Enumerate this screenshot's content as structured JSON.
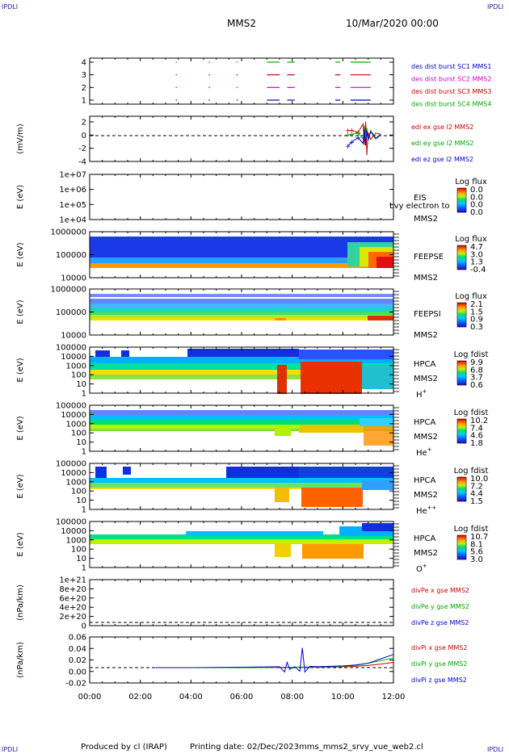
{
  "corners": {
    "tl": "IPDLI",
    "tr": "IPDLI",
    "bl": "IPDLI",
    "br": "IPDLI"
  },
  "header": {
    "spacecraft": "MMS2",
    "datetime": "10/Mar/2020 00:00"
  },
  "footer": {
    "produced": "Produced by cl (IRAP)",
    "printing": "Printing date: 02/Dec/2023",
    "file": "mms_mms2_srvy_vue_web2.cl"
  },
  "chart_data": {
    "type": "multi-panel time series and spectrograms",
    "x_ticks": [
      "00:00",
      "02:00",
      "04:00",
      "06:00",
      "08:00",
      "10:00",
      "12:00"
    ],
    "x_range_hours": [
      0,
      12
    ],
    "panels": [
      {
        "id": "burst",
        "type": "scatter",
        "ylabel": "",
        "yticks": [
          "4",
          "3",
          "2",
          "1"
        ],
        "legend": [
          {
            "text": "des dist burst SC1 MMS1",
            "color": "#0000cc"
          },
          {
            "text": "des dist burst SC2 MMS2",
            "color": "#cc00cc"
          },
          {
            "text": "des dist burst SC3 MMS3",
            "color": "#cc0000"
          },
          {
            "text": "des dist burst SC4 MMS4",
            "color": "#00aa00"
          }
        ],
        "series": [
          {
            "level": 4,
            "color": "#00aa00",
            "segments_hours": [
              [
                3.4,
                3.45
              ],
              [
                4.7,
                4.75
              ],
              [
                5.8,
                5.85
              ],
              [
                7.0,
                7.5
              ],
              [
                7.8,
                8.1
              ],
              [
                9.7,
                9.9
              ],
              [
                10.3,
                11.1
              ]
            ]
          },
          {
            "level": 3,
            "color": "#cc0000",
            "segments_hours": [
              [
                3.4,
                3.45
              ],
              [
                4.7,
                4.75
              ],
              [
                5.8,
                5.85
              ],
              [
                7.0,
                7.5
              ],
              [
                7.8,
                8.1
              ],
              [
                9.7,
                9.9
              ],
              [
                10.3,
                11.1
              ]
            ]
          },
          {
            "level": 2,
            "color": "#cc00cc",
            "segments_hours": [
              [
                3.4,
                3.45
              ],
              [
                4.7,
                4.75
              ],
              [
                5.8,
                5.85
              ],
              [
                7.0,
                7.5
              ],
              [
                7.8,
                8.1
              ],
              [
                9.7,
                9.9
              ],
              [
                10.3,
                11.1
              ]
            ]
          },
          {
            "level": 1,
            "color": "#0000cc",
            "segments_hours": [
              [
                3.4,
                3.45
              ],
              [
                4.7,
                4.75
              ],
              [
                5.8,
                5.85
              ],
              [
                7.0,
                7.5
              ],
              [
                7.8,
                8.1
              ],
              [
                9.7,
                9.9
              ],
              [
                10.3,
                11.1
              ]
            ]
          }
        ]
      },
      {
        "id": "edi",
        "type": "line",
        "ylabel": "(mV/m)",
        "yticks": [
          "2",
          "0",
          "-2",
          "-4"
        ],
        "ylim": [
          -4,
          3
        ],
        "legend": [
          {
            "text": "edi ex gse l2 MMS2",
            "color": "#cc0000"
          },
          {
            "text": "edi ey gse l2 MMS2",
            "color": "#00aa00"
          },
          {
            "text": "edi ez gse l2 MMS2",
            "color": "#0000cc"
          }
        ],
        "series": [
          {
            "name": "edi ex gse l2 MMS2",
            "color": "#cc0000",
            "x": [
              10.2,
              10.35,
              10.6,
              10.8,
              10.85,
              10.9,
              10.95,
              11.0,
              11.1,
              11.3,
              11.5
            ],
            "y": [
              0.8,
              0.8,
              0.5,
              1.8,
              -1.5,
              2.2,
              -3.0,
              0.5,
              -0.6,
              0.4,
              0.2
            ]
          },
          {
            "name": "edi ey gse l2 MMS2",
            "color": "#00aa00",
            "x": [
              10.2,
              10.35,
              10.6,
              10.8,
              10.85,
              10.9,
              10.95,
              11.0,
              11.1,
              11.3,
              11.5
            ],
            "y": [
              0.1,
              0.2,
              0.4,
              -0.5,
              1.5,
              -1.0,
              1.2,
              -0.8,
              0.8,
              -0.4,
              0.3
            ]
          },
          {
            "name": "edi ez gse l2 MMS2",
            "color": "#0000cc",
            "x": [
              10.2,
              10.35,
              10.6,
              10.8,
              10.85,
              10.9,
              10.95,
              11.0,
              11.1,
              11.3,
              11.5
            ],
            "y": [
              -1.6,
              -1.0,
              -0.3,
              -1.2,
              1.0,
              -1.5,
              0.8,
              -0.6,
              0.6,
              -0.5,
              0.1
            ]
          }
        ]
      },
      {
        "id": "eis",
        "type": "heatmap",
        "ylabel": "E (eV)",
        "yticks": [
          "1e+07",
          "1e+06",
          "1e+05",
          "1e+04"
        ],
        "side": [
          "EIS",
          "Lvy electron to",
          "MMS2"
        ],
        "colorbar": {
          "title": "Log flux",
          "labels": [
            "0.0",
            "0.0",
            "0.0",
            "0.0"
          ]
        }
      },
      {
        "id": "feepse",
        "type": "heatmap",
        "ylabel": "E (eV)",
        "yticks": [
          "1000000",
          "100000",
          "10000"
        ],
        "side": [
          "FEEPSE",
          "MMS2"
        ],
        "colorbar": {
          "title": "Log flux",
          "labels": [
            "4.7",
            "3.0",
            "1.3",
            "-0.4"
          ]
        }
      },
      {
        "id": "feepsi",
        "type": "heatmap",
        "ylabel": "E (eV)",
        "yticks": [
          "1000000",
          "100000",
          "10000"
        ],
        "side": [
          "FEEPSI",
          "MMS2"
        ],
        "colorbar": {
          "title": "Log flux",
          "labels": [
            "2.1",
            "1.5",
            "0.9",
            "0.3"
          ]
        }
      },
      {
        "id": "hpca_h",
        "type": "heatmap",
        "ylabel": "E (eV)",
        "yticks": [
          "100000",
          "10000",
          "1000",
          "100",
          "10",
          "1"
        ],
        "side": [
          "HPCA",
          "MMS2"
        ],
        "species": "H",
        "charge": "+",
        "colorbar": {
          "title": "Log fdist",
          "labels": [
            "9.9",
            "6.8",
            "3.7",
            "0.6"
          ]
        }
      },
      {
        "id": "hpca_he",
        "type": "heatmap",
        "ylabel": "E (eV)",
        "yticks": [
          "100000",
          "10000",
          "1000",
          "100",
          "10",
          "1"
        ],
        "side": [
          "HPCA",
          "MMS2"
        ],
        "species": "He",
        "charge": "+",
        "colorbar": {
          "title": "Log fdist",
          "labels": [
            "10.2",
            "7.4",
            "4.6",
            "1.8"
          ]
        }
      },
      {
        "id": "hpca_hepp",
        "type": "heatmap",
        "ylabel": "E (eV)",
        "yticks": [
          "100000",
          "10000",
          "1000",
          "100",
          "10",
          "1"
        ],
        "side": [
          "HPCA",
          "MMS2"
        ],
        "species": "He",
        "charge": "++",
        "colorbar": {
          "title": "Log fdist",
          "labels": [
            "10.0",
            "7.2",
            "4.4",
            "1.5"
          ]
        }
      },
      {
        "id": "hpca_o",
        "type": "heatmap",
        "ylabel": "E (eV)",
        "yticks": [
          "100000",
          "10000",
          "1000",
          "100",
          "10",
          "1"
        ],
        "side": [
          "HPCA",
          "MMS2"
        ],
        "species": "O",
        "charge": "+",
        "colorbar": {
          "title": "Log fdist",
          "labels": [
            "10.7",
            "8.1",
            "5.6",
            "3.0"
          ]
        }
      },
      {
        "id": "divpe",
        "type": "line",
        "ylabel": "(nPa/km)",
        "yticks": [
          "1e+21",
          "8e+20",
          "6e+20",
          "4e+20",
          "2e+20",
          "0"
        ],
        "legend": [
          {
            "text": "divPe x gse MMS2",
            "color": "#cc0000"
          },
          {
            "text": "divPe y gse MMS2",
            "color": "#00aa00"
          },
          {
            "text": "divPe z gse MMS2",
            "color": "#0000cc"
          }
        ]
      },
      {
        "id": "divpi",
        "type": "line",
        "ylabel": "(nPa/km)",
        "yticks": [
          "0.06",
          "0.04",
          "0.02",
          "0.00",
          "-0.02"
        ],
        "ylim": [
          -0.035,
          0.07
        ],
        "legend": [
          {
            "text": "divPi x gse MMS2",
            "color": "#cc0000"
          },
          {
            "text": "divPi y gse MMS2",
            "color": "#00aa00"
          },
          {
            "text": "divPi z gse MMS2",
            "color": "#0000cc"
          }
        ],
        "series": [
          {
            "name": "divPi x gse MMS2",
            "color": "#cc0000",
            "x": [
              2.6,
              4,
              6,
              8,
              9,
              10,
              10.5,
              11,
              11.5,
              12
            ],
            "y": [
              0,
              0,
              0,
              0.001,
              0.001,
              0.002,
              0.003,
              0.005,
              0.008,
              0.012
            ]
          },
          {
            "name": "divPi y gse MMS2",
            "color": "#00aa00",
            "x": [
              2.6,
              4,
              6,
              8,
              9,
              10,
              10.5,
              11,
              11.5,
              12
            ],
            "y": [
              0,
              0,
              0,
              0.001,
              0.002,
              0.003,
              0.005,
              0.01,
              0.016,
              0.022
            ]
          },
          {
            "name": "divPi z gse MMS2",
            "color": "#0000cc",
            "x": [
              2.6,
              4,
              6,
              7.5,
              7.7,
              7.8,
              7.9,
              8.1,
              8.3,
              8.4,
              8.5,
              8.7,
              9,
              10,
              10.5,
              11,
              11.5,
              12
            ],
            "y": [
              0,
              0,
              0.001,
              0.002,
              -0.01,
              0.012,
              -0.004,
              0.002,
              -0.008,
              0.045,
              -0.01,
              0.003,
              0.002,
              0.004,
              0.006,
              0.01,
              0.02,
              0.03
            ]
          }
        ]
      }
    ]
  }
}
